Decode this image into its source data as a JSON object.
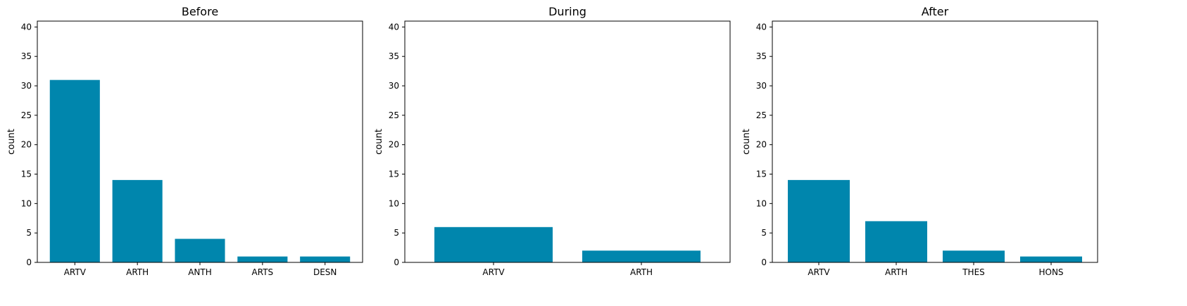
{
  "chart_data": [
    {
      "type": "bar",
      "title": "Before",
      "xlabel": "",
      "ylabel": "count",
      "categories": [
        "ARTV",
        "ARTH",
        "ANTH",
        "ARTS",
        "DESN"
      ],
      "values": [
        31,
        14,
        4,
        1,
        1
      ],
      "ylim": [
        0,
        41
      ],
      "yticks": [
        0,
        5,
        10,
        15,
        20,
        25,
        30,
        35,
        40
      ],
      "grid": false,
      "legend": "none",
      "color": "#0086AD"
    },
    {
      "type": "bar",
      "title": "During",
      "xlabel": "",
      "ylabel": "count",
      "categories": [
        "ARTV",
        "ARTH"
      ],
      "values": [
        6,
        2
      ],
      "ylim": [
        0,
        41
      ],
      "yticks": [
        0,
        5,
        10,
        15,
        20,
        25,
        30,
        35,
        40
      ],
      "grid": false,
      "legend": "none",
      "color": "#0086AD"
    },
    {
      "type": "bar",
      "title": "After",
      "xlabel": "",
      "ylabel": "count",
      "categories": [
        "ARTV",
        "ARTH",
        "THES",
        "HONS"
      ],
      "values": [
        14,
        7,
        2,
        1
      ],
      "ylim": [
        0,
        41
      ],
      "yticks": [
        0,
        5,
        10,
        15,
        20,
        25,
        30,
        35,
        40
      ],
      "grid": false,
      "legend": "none",
      "color": "#0086AD"
    }
  ]
}
